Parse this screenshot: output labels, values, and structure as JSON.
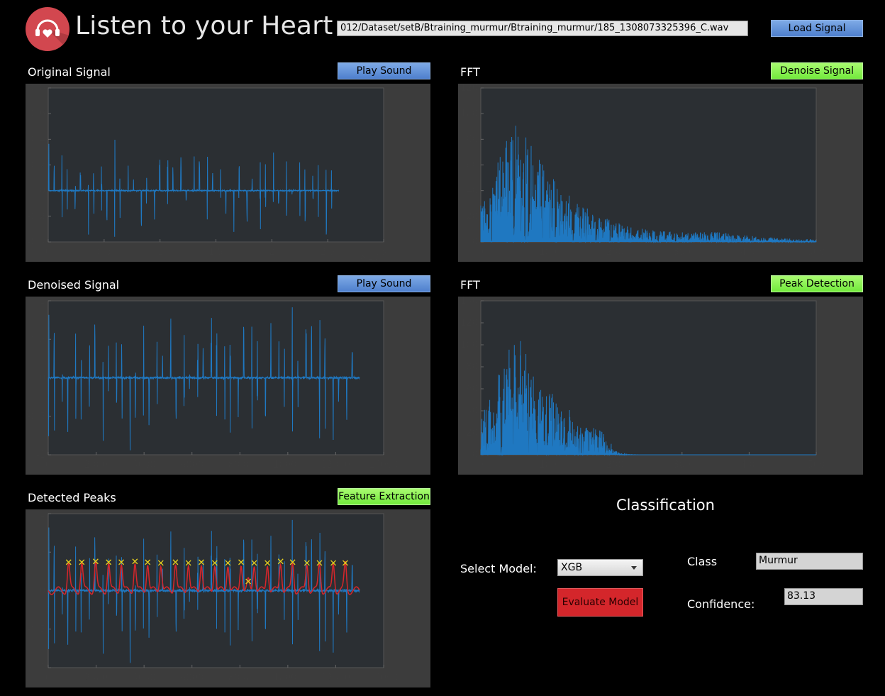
{
  "app": {
    "title": "Listen to your Heart",
    "logo_icon": "heart-headphones-icon"
  },
  "toolbar": {
    "file_path": "012/Dataset/setB/Btraining_murmur/Btraining_murmur/185_1308073325396_C.wav",
    "load_label": "Load Signal"
  },
  "panels": {
    "original": {
      "title": "Original Signal",
      "button": "Play Sound"
    },
    "fft1": {
      "title": "FFT",
      "button": "Denoise Signal"
    },
    "denoised": {
      "title": "Denoised Signal",
      "button": "Play Sound"
    },
    "fft2": {
      "title": "FFT",
      "button": "Peak Detection"
    },
    "peaks": {
      "title": "Detected Peaks",
      "button": "Feature Extraction"
    }
  },
  "classification": {
    "title": "Classification",
    "select_label": "Select Model:",
    "model": "XGB",
    "evaluate_label": "Evaluate Model",
    "class_label": "Class",
    "class_value": "Murmur",
    "confidence_label": "Confidence:",
    "confidence_value": "83.13"
  },
  "colors": {
    "signal": "#1f78c1",
    "envelope": "#d7262b",
    "peak_marker": "#e8d21d",
    "plot_bg": "#2b2f33",
    "panel_bg": "#3c3c3c"
  },
  "chart_data": [
    {
      "type": "line",
      "name": "original-signal",
      "xlim": [
        0,
        3
      ],
      "ylim": [
        -0.4,
        0.8
      ],
      "x_ticks": [
        "0",
        "0.5",
        "1",
        "1.5",
        "2",
        "2.5",
        "3"
      ],
      "y_ticks": [
        "-0.4",
        "-0.2",
        "0",
        "0.2",
        "0.4",
        "0.6",
        "0.8"
      ],
      "x_exponent": "×10⁴",
      "signal_extent_x": 2.6
    },
    {
      "type": "line",
      "name": "fft-original",
      "xlim": [
        0,
        500
      ],
      "ylim": [
        0,
        120
      ],
      "x_ticks": [
        "0",
        "100",
        "200",
        "300",
        "400",
        "500"
      ],
      "y_ticks": [
        "0",
        "20",
        "40",
        "60",
        "80",
        "100",
        "120"
      ]
    },
    {
      "type": "line",
      "name": "denoised-signal",
      "xlim": [
        0,
        14000
      ],
      "ylim": [
        -1,
        1
      ],
      "x_ticks": [
        "0",
        "2000",
        "4000",
        "6000",
        "8000",
        "10000",
        "12000",
        "14000"
      ],
      "y_ticks": [
        "-1",
        "-0.5",
        "0",
        "0.5",
        "1"
      ],
      "signal_extent_x": 13000
    },
    {
      "type": "line",
      "name": "fft-denoised",
      "xlim": [
        0,
        500
      ],
      "ylim": [
        0,
        140
      ],
      "x_ticks": [
        "0",
        "100",
        "200",
        "300",
        "400",
        "500"
      ],
      "y_ticks": [
        "0",
        "20",
        "40",
        "60",
        "80",
        "100",
        "120",
        "140"
      ]
    },
    {
      "type": "line",
      "name": "detected-peaks",
      "xlim": [
        0,
        14000
      ],
      "ylim": [
        -1,
        1
      ],
      "x_ticks": [
        "0",
        "2000",
        "4000",
        "6000",
        "8000",
        "10000",
        "12000",
        "14000"
      ],
      "y_ticks": [
        "-1",
        "-0.5",
        "0",
        "0.5",
        "1"
      ],
      "signal_extent_x": 13000,
      "peaks_x": [
        850,
        1400,
        1980,
        2520,
        3050,
        3620,
        4150,
        4700,
        5310,
        5850,
        6390,
        6950,
        7500,
        8050,
        8350,
        8600,
        9150,
        9700,
        10200,
        10800,
        11320,
        11900,
        12400
      ],
      "peaks_y": [
        0.37,
        0.37,
        0.38,
        0.37,
        0.37,
        0.38,
        0.37,
        0.36,
        0.37,
        0.36,
        0.37,
        0.36,
        0.36,
        0.37,
        0.12,
        0.36,
        0.36,
        0.38,
        0.37,
        0.36,
        0.36,
        0.36,
        0.36
      ]
    }
  ]
}
